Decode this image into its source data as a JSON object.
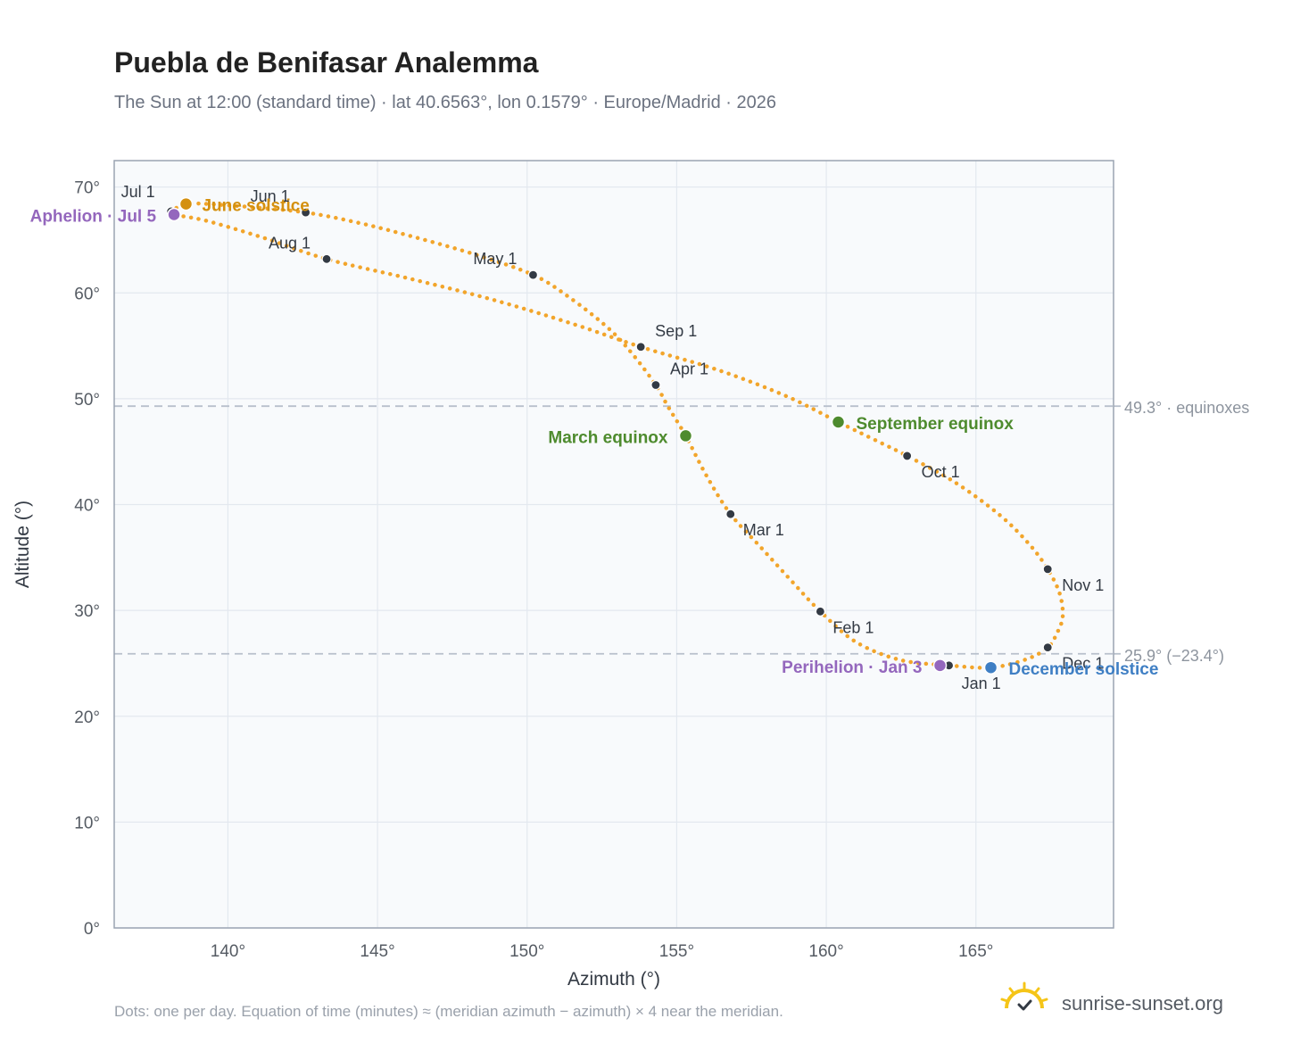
{
  "header": {
    "title": "Puebla de Benifasar Analemma",
    "subtitle": "The Sun at 12:00 (standard time) · lat 40.6563°, lon 0.1579° · Europe/Madrid · 2026"
  },
  "footer": {
    "note": "Dots: one per day. Equation of time (minutes) ≈ (meridian azimuth − azimuth) × 4 near the meridian.",
    "brand": "sunrise-sunset.org"
  },
  "colors": {
    "curve": "#f2a52b",
    "month_marker": "#333a44",
    "solstice_june": "#d4900f",
    "solstice_december": "#3f7fc4",
    "equinox": "#4e8b2e",
    "apsis": "#9467bd",
    "reference_line": "#b8c0cc",
    "plot_background": "#f8fafc"
  },
  "chart_data": {
    "type": "scatter",
    "title": "Puebla de Benifasar Analemma",
    "xlabel": "Azimuth (°)",
    "ylabel": "Altitude (°)",
    "xlim": [
      136.2,
      169.6
    ],
    "ylim": [
      0,
      72.5
    ],
    "x_ticks": [
      140,
      145,
      150,
      155,
      160,
      165
    ],
    "x_tick_labels": [
      "140°",
      "145°",
      "150°",
      "155°",
      "160°",
      "165°"
    ],
    "y_ticks": [
      0,
      10,
      20,
      30,
      40,
      50,
      60,
      70
    ],
    "y_tick_labels": [
      "0°",
      "10°",
      "20°",
      "30°",
      "40°",
      "50°",
      "60°",
      "70°"
    ],
    "grid": true,
    "reference_lines": [
      {
        "y": 49.3,
        "label": "49.3° · equinoxes"
      },
      {
        "y": 25.9,
        "label": "25.9° (−23.4°)"
      }
    ],
    "month_markers": [
      {
        "label": "Jan 1",
        "azimuth": 164.1,
        "altitude": 24.8
      },
      {
        "label": "Feb 1",
        "azimuth": 159.8,
        "altitude": 29.9
      },
      {
        "label": "Mar 1",
        "azimuth": 156.8,
        "altitude": 39.1
      },
      {
        "label": "Apr 1",
        "azimuth": 154.3,
        "altitude": 51.3
      },
      {
        "label": "May 1",
        "azimuth": 150.2,
        "altitude": 61.7
      },
      {
        "label": "Jun 1",
        "azimuth": 142.6,
        "altitude": 67.6
      },
      {
        "label": "Jul 1",
        "azimuth": 138.1,
        "altitude": 67.7
      },
      {
        "label": "Aug 1",
        "azimuth": 143.3,
        "altitude": 63.2
      },
      {
        "label": "Sep 1",
        "azimuth": 153.8,
        "altitude": 54.9
      },
      {
        "label": "Oct 1",
        "azimuth": 162.7,
        "altitude": 44.6
      },
      {
        "label": "Nov 1",
        "azimuth": 167.4,
        "altitude": 33.9
      },
      {
        "label": "Dec 1",
        "azimuth": 167.4,
        "altitude": 26.5
      }
    ],
    "events": [
      {
        "label": "June solstice",
        "azimuth": 138.6,
        "altitude": 68.4,
        "color": "#d4900f"
      },
      {
        "label": "Aphelion · Jul 5",
        "azimuth": 138.2,
        "altitude": 67.4,
        "color": "#9467bd"
      },
      {
        "label": "March equinox",
        "azimuth": 155.3,
        "altitude": 46.5,
        "color": "#4e8b2e"
      },
      {
        "label": "September equinox",
        "azimuth": 160.4,
        "altitude": 47.8,
        "color": "#4e8b2e"
      },
      {
        "label": "Perihelion · Jan 3",
        "azimuth": 163.8,
        "altitude": 24.8,
        "color": "#9467bd"
      },
      {
        "label": "December solstice",
        "azimuth": 165.5,
        "altitude": 24.6,
        "color": "#3f7fc4"
      }
    ],
    "curve_path": [
      [
        164.1,
        24.8
      ],
      [
        162.5,
        25.3
      ],
      [
        161.0,
        27.0
      ],
      [
        159.8,
        29.9
      ],
      [
        158.8,
        32.9
      ],
      [
        157.8,
        36.0
      ],
      [
        156.8,
        39.1
      ],
      [
        156.0,
        42.7
      ],
      [
        155.3,
        46.5
      ],
      [
        154.7,
        49.3
      ],
      [
        154.3,
        51.3
      ],
      [
        153.5,
        54.3
      ],
      [
        152.7,
        56.7
      ],
      [
        151.4,
        59.6
      ],
      [
        150.2,
        61.7
      ],
      [
        148.3,
        63.6
      ],
      [
        146.2,
        65.3
      ],
      [
        144.4,
        66.6
      ],
      [
        142.6,
        67.6
      ],
      [
        140.8,
        68.1
      ],
      [
        139.3,
        68.4
      ],
      [
        138.6,
        68.4
      ],
      [
        138.1,
        67.7
      ],
      [
        138.2,
        67.4
      ],
      [
        139.3,
        66.8
      ],
      [
        141.2,
        65.2
      ],
      [
        143.3,
        63.2
      ],
      [
        146.0,
        61.4
      ],
      [
        148.8,
        59.4
      ],
      [
        151.5,
        57.1
      ],
      [
        153.8,
        54.9
      ],
      [
        156.4,
        52.7
      ],
      [
        158.7,
        50.2
      ],
      [
        160.4,
        47.8
      ],
      [
        161.7,
        46.0
      ],
      [
        162.7,
        44.6
      ],
      [
        164.3,
        42.1
      ],
      [
        165.8,
        39.0
      ],
      [
        166.8,
        36.2
      ],
      [
        167.4,
        33.9
      ],
      [
        167.8,
        31.6
      ],
      [
        167.9,
        29.4
      ],
      [
        167.7,
        27.8
      ],
      [
        167.4,
        26.5
      ],
      [
        166.7,
        25.4
      ],
      [
        165.5,
        24.6
      ],
      [
        164.1,
        24.8
      ]
    ]
  }
}
